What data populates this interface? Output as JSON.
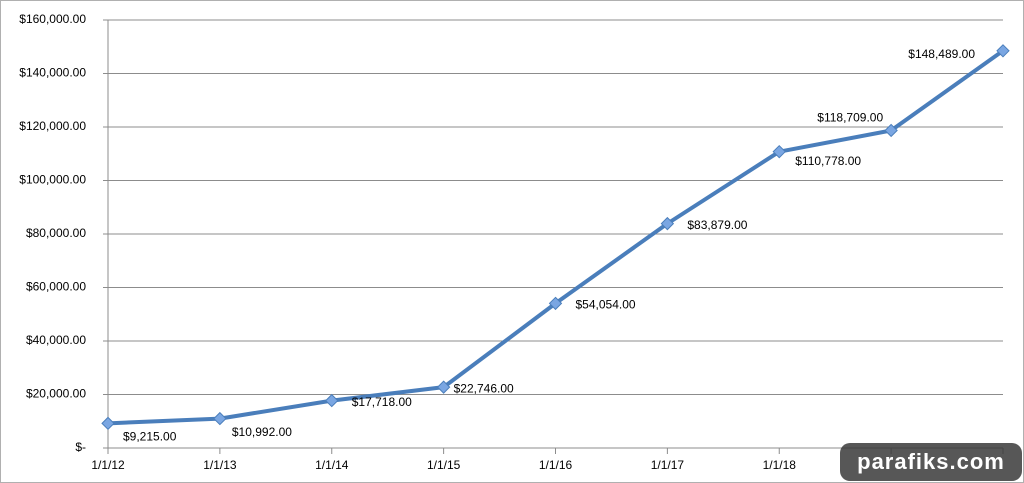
{
  "chart_data": {
    "type": "line",
    "categories": [
      "1/1/12",
      "1/1/13",
      "1/1/14",
      "1/1/15",
      "1/1/16",
      "1/1/17",
      "1/1/18",
      null,
      null
    ],
    "values": [
      9215,
      10992,
      17718,
      22746,
      54054,
      83879,
      110778,
      118709,
      148489
    ],
    "value_labels": [
      "$9,215.00",
      "$10,992.00",
      "$17,718.00",
      "$22,746.00",
      "$54,054.00",
      "$83,879.00",
      "$110,778.00",
      "$118,709.00",
      "$148,489.00"
    ],
    "color": "#4a7ebb",
    "marker_color": "#7aa6e2",
    "ylim": [
      0,
      160000
    ],
    "yticks": [
      {
        "value": 0,
        "label": "$-"
      },
      {
        "value": 20000,
        "label": "$20,000.00"
      },
      {
        "value": 40000,
        "label": "$40,000.00"
      },
      {
        "value": 60000,
        "label": "$60,000.00"
      },
      {
        "value": 80000,
        "label": "$80,000.00"
      },
      {
        "value": 100000,
        "label": "$100,000.00"
      },
      {
        "value": 120000,
        "label": "$120,000.00"
      },
      {
        "value": 140000,
        "label": "$140,000.00"
      },
      {
        "value": 160000,
        "label": "$160,000.00"
      }
    ],
    "grid": true,
    "watermark": "parafiks.com"
  }
}
